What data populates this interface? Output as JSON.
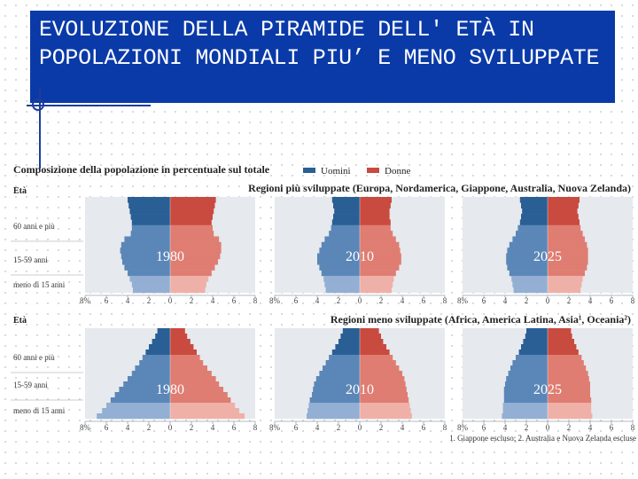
{
  "slide": {
    "title": "EVOLUZIONE DELLA PIRAMIDE DELL' ETÀ  IN POPOLAZIONI MONDIALI PIU’ E MENO SVILUPPATE"
  },
  "colors": {
    "title_bg": "#0a3aa8",
    "men_dark": "#2a5f95",
    "men_mid": "#5b86b8",
    "men_light": "#93afd3",
    "women_dark": "#c94a3f",
    "women_mid": "#df7d72",
    "women_light": "#efb0a8",
    "panel_bg": "#e6e9ed"
  },
  "chart_data": {
    "type": "bar",
    "subtype": "population-pyramid",
    "title": "Composizione della popolazione in percentuale sul totale",
    "legend": [
      "Uomini",
      "Donne"
    ],
    "ylabel": "Età",
    "age_groups": [
      "60 anni e più",
      "15-59 anni",
      "meno di 15 anni"
    ],
    "x_ticks": [
      "8%",
      "6",
      "4",
      "2",
      "0",
      "2",
      "4",
      "6",
      "8"
    ],
    "xlim": [
      -8,
      8
    ],
    "footnote": "1. Giappone escluso; 2. Australia e Nuova Zelanda escluse",
    "groups": [
      {
        "region": "Regioni più sviluppate (Europa, Nordamerica, Giappone, Australia, Nuova Zelanda)",
        "pyramids": [
          {
            "year": "1980",
            "men": [
              4.0,
              3.9,
              3.8,
              3.7,
              3.6,
              3.6,
              3.7,
              4.3,
              4.6,
              4.7,
              4.6,
              4.5,
              4.3,
              4.0,
              3.8,
              3.6,
              3.5
            ],
            "women": [
              4.3,
              4.2,
              4.1,
              4.0,
              3.9,
              4.0,
              4.1,
              4.6,
              4.8,
              4.8,
              4.7,
              4.5,
              4.2,
              3.9,
              3.6,
              3.4,
              3.3
            ]
          },
          {
            "year": "2010",
            "men": [
              2.6,
              2.5,
              2.4,
              2.5,
              2.6,
              2.7,
              2.9,
              3.3,
              3.6,
              3.8,
              4.0,
              4.0,
              3.8,
              3.6,
              3.4,
              3.3,
              3.2
            ],
            "women": [
              3.0,
              2.9,
              2.8,
              2.8,
              2.9,
              2.9,
              3.1,
              3.4,
              3.7,
              3.8,
              3.9,
              3.9,
              3.7,
              3.4,
              3.2,
              3.1,
              3.0
            ]
          },
          {
            "year": "2025",
            "men": [
              2.6,
              2.5,
              2.4,
              2.5,
              2.6,
              2.8,
              3.0,
              3.3,
              3.6,
              3.8,
              3.9,
              3.9,
              3.8,
              3.6,
              3.4,
              3.3,
              3.2
            ],
            "women": [
              3.0,
              2.9,
              2.8,
              2.9,
              3.0,
              3.1,
              3.3,
              3.5,
              3.7,
              3.8,
              3.8,
              3.8,
              3.7,
              3.5,
              3.3,
              3.2,
              3.1
            ]
          }
        ]
      },
      {
        "region": "Regioni meno sviluppate (Africa, America Latina, Asia¹, Oceania²)",
        "pyramids": [
          {
            "year": "1980",
            "men": [
              1.2,
              1.4,
              1.7,
              2.0,
              2.3,
              2.6,
              2.9,
              3.3,
              3.6,
              4.0,
              4.4,
              4.8,
              5.2,
              5.6,
              6.0,
              6.4,
              6.9
            ],
            "women": [
              1.4,
              1.6,
              1.9,
              2.2,
              2.5,
              2.8,
              3.1,
              3.5,
              3.9,
              4.3,
              4.6,
              5.0,
              5.4,
              5.7,
              6.1,
              6.5,
              7.0
            ]
          },
          {
            "year": "2010",
            "men": [
              1.6,
              1.8,
              2.0,
              2.3,
              2.6,
              2.9,
              3.2,
              3.5,
              3.8,
              4.1,
              4.3,
              4.4,
              4.5,
              4.7,
              4.8,
              4.9,
              5.0
            ],
            "women": [
              1.8,
              2.0,
              2.2,
              2.5,
              2.8,
              3.1,
              3.4,
              3.7,
              4.0,
              4.2,
              4.3,
              4.4,
              4.5,
              4.6,
              4.7,
              4.8,
              4.9
            ]
          },
          {
            "year": "2025",
            "men": [
              2.0,
              2.1,
              2.3,
              2.5,
              2.7,
              3.0,
              3.3,
              3.5,
              3.7,
              3.9,
              4.0,
              4.1,
              4.1,
              4.1,
              4.2,
              4.2,
              4.3
            ],
            "women": [
              2.2,
              2.3,
              2.5,
              2.7,
              2.9,
              3.2,
              3.4,
              3.6,
              3.8,
              3.9,
              4.0,
              4.0,
              4.0,
              4.1,
              4.1,
              4.1,
              4.2
            ]
          }
        ]
      }
    ]
  }
}
